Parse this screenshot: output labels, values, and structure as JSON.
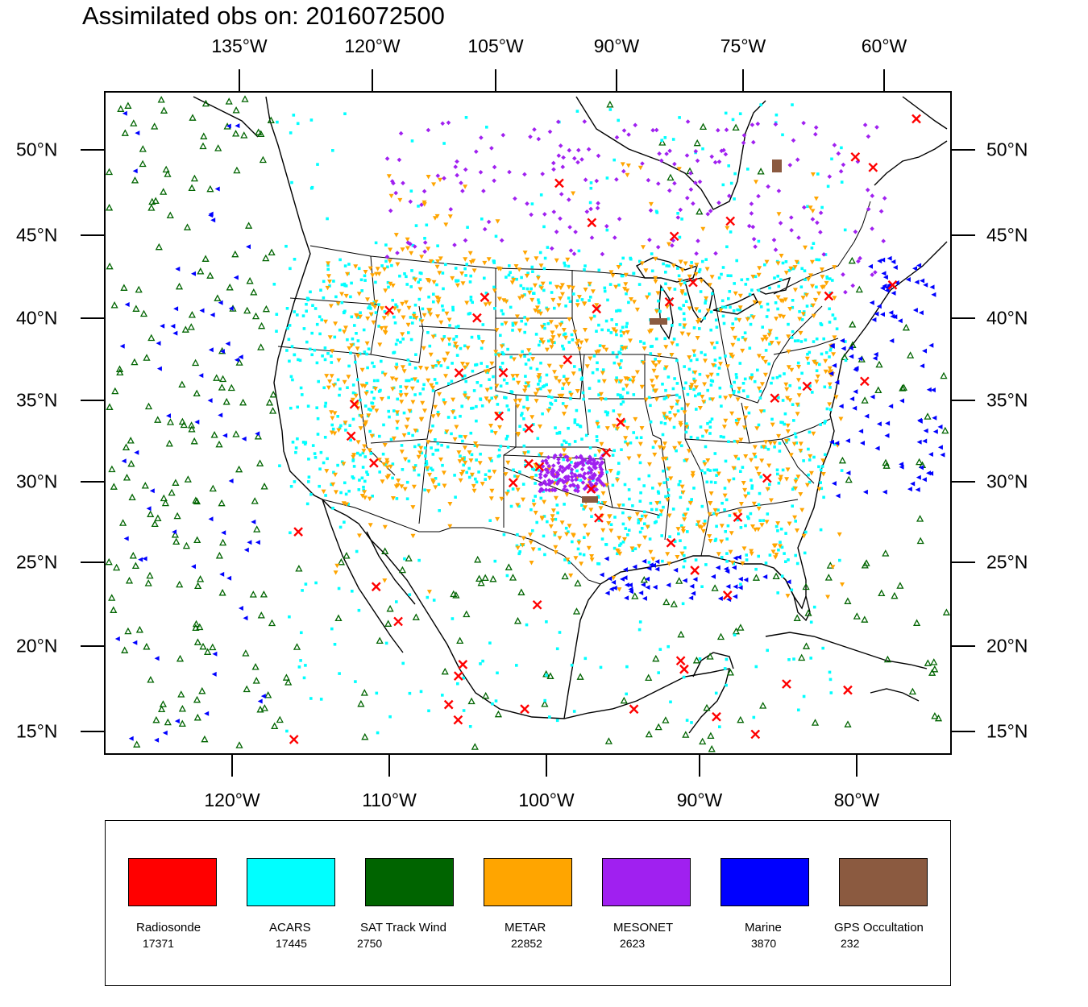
{
  "title": "Assimilated obs on: 2016072500",
  "top_lon_labels": [
    "135°W",
    "120°W",
    "105°W",
    "90°W",
    "75°W",
    "60°W"
  ],
  "bottom_lon_labels": [
    "120°W",
    "110°W",
    "100°W",
    "90°W",
    "80°W"
  ],
  "lat_labels": [
    "50°N",
    "45°N",
    "40°N",
    "35°N",
    "30°N",
    "25°N",
    "20°N",
    "15°N"
  ],
  "legend": [
    {
      "name": "Radiosonde",
      "count": "17371",
      "color": "#ff0000"
    },
    {
      "name": "ACARS",
      "count": "17445",
      "color": "#00ffff"
    },
    {
      "name": "SAT Track Wind",
      "count": "2750",
      "color": "#006400"
    },
    {
      "name": "METAR",
      "count": "22852",
      "color": "#ffa500"
    },
    {
      "name": "MESONET",
      "count": "2623",
      "color": "#a020f0"
    },
    {
      "name": "Marine",
      "count": "3870",
      "color": "#0000ff"
    },
    {
      "name": "GPS Occultation",
      "count": "232",
      "color": "#8b5a40"
    }
  ],
  "colors": {
    "radiosonde": "#ff0000",
    "acars": "#00ffff",
    "sat_track_wind": "#006400",
    "metar": "#ffa500",
    "mesonet": "#a020f0",
    "marine": "#0000ff",
    "gps": "#8b5a40"
  }
}
